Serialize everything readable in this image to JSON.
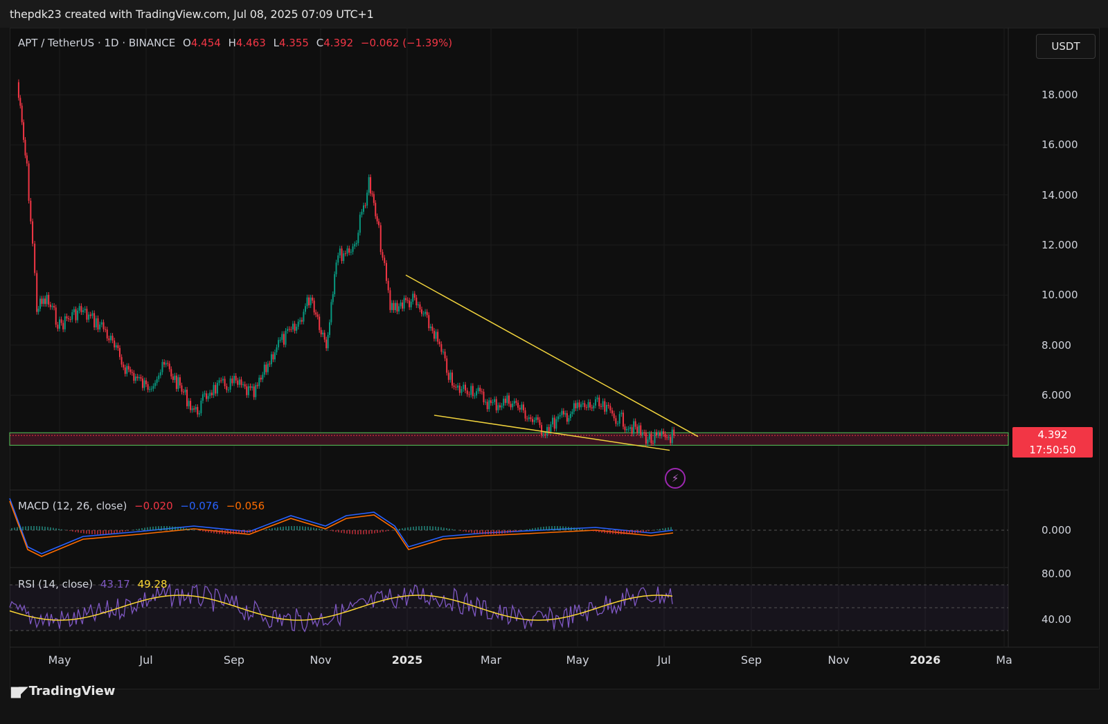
{
  "header": {
    "credit": "thepdk23 created with TradingView.com, Jul 08, 2025 07:09 UTC+1"
  },
  "legend": {
    "symbol": "APT / TetherUS · 1D · BINANCE",
    "o_label": "O",
    "o_value": "4.454",
    "h_label": "H",
    "h_value": "4.463",
    "l_label": "L",
    "l_value": "4.355",
    "c_label": "C",
    "c_value": "4.392",
    "change": "−0.062 (−1.39%)"
  },
  "currency_button": "USDT",
  "price_axis": [
    "18.000",
    "16.000",
    "14.000",
    "12.000",
    "10.000",
    "8.000",
    "6.000"
  ],
  "price_tag": {
    "price": "4.392",
    "countdown": "17:50:50"
  },
  "macd": {
    "label": "MACD (12, 26, close)",
    "v1": "−0.020",
    "v2": "−0.076",
    "v3": "−0.056",
    "axis": "0.000",
    "color_macd": "#2962ff",
    "color_signal": "#ff6d00"
  },
  "rsi": {
    "label": "RSI (14, close)",
    "v1": "43.17",
    "v2": "49.28",
    "axis_top": "80.00",
    "axis_bottom": "40.00",
    "color_rsi": "#7e57c2",
    "color_ma": "#fdd835"
  },
  "time_axis": [
    {
      "label": "May",
      "bold": false
    },
    {
      "label": "Jul",
      "bold": false
    },
    {
      "label": "Sep",
      "bold": false
    },
    {
      "label": "Nov",
      "bold": false
    },
    {
      "label": "2025",
      "bold": true
    },
    {
      "label": "Mar",
      "bold": false
    },
    {
      "label": "May",
      "bold": false
    },
    {
      "label": "Jul",
      "bold": false
    },
    {
      "label": "Sep",
      "bold": false
    },
    {
      "label": "Nov",
      "bold": false
    },
    {
      "label": "2026",
      "bold": true
    },
    {
      "label": "Ma",
      "bold": false
    }
  ],
  "brand": "TradingView",
  "chart_data": {
    "type": "line",
    "instrument": "APT / TetherUS",
    "timeframe": "1D",
    "exchange": "BINANCE",
    "ohlc_last": {
      "open": 4.454,
      "high": 4.463,
      "low": 4.355,
      "close": 4.392,
      "change": -0.062,
      "change_pct": -1.39
    },
    "y_ticks": [
      6,
      8,
      10,
      12,
      14,
      16,
      18
    ],
    "candles_approx_close": [
      {
        "x": "2024-04-01",
        "y": 18.5
      },
      {
        "x": "2024-04-08",
        "y": 15.0
      },
      {
        "x": "2024-04-12",
        "y": 12.0
      },
      {
        "x": "2024-04-15",
        "y": 9.5
      },
      {
        "x": "2024-04-22",
        "y": 9.8
      },
      {
        "x": "2024-05-01",
        "y": 8.8
      },
      {
        "x": "2024-05-15",
        "y": 9.4
      },
      {
        "x": "2024-06-01",
        "y": 8.7
      },
      {
        "x": "2024-06-15",
        "y": 7.2
      },
      {
        "x": "2024-07-01",
        "y": 6.3
      },
      {
        "x": "2024-07-15",
        "y": 7.2
      },
      {
        "x": "2024-08-05",
        "y": 5.3
      },
      {
        "x": "2024-08-15",
        "y": 6.2
      },
      {
        "x": "2024-09-01",
        "y": 6.5
      },
      {
        "x": "2024-09-15",
        "y": 6.0
      },
      {
        "x": "2024-10-01",
        "y": 8.0
      },
      {
        "x": "2024-10-15",
        "y": 8.7
      },
      {
        "x": "2024-10-25",
        "y": 10.0
      },
      {
        "x": "2024-11-05",
        "y": 8.0
      },
      {
        "x": "2024-11-12",
        "y": 11.5
      },
      {
        "x": "2024-11-25",
        "y": 12.0
      },
      {
        "x": "2024-12-05",
        "y": 14.5
      },
      {
        "x": "2024-12-12",
        "y": 12.5
      },
      {
        "x": "2024-12-20",
        "y": 9.5
      },
      {
        "x": "2025-01-05",
        "y": 9.8
      },
      {
        "x": "2025-01-20",
        "y": 8.5
      },
      {
        "x": "2025-02-03",
        "y": 6.2
      },
      {
        "x": "2025-02-15",
        "y": 6.3
      },
      {
        "x": "2025-03-01",
        "y": 5.6
      },
      {
        "x": "2025-03-15",
        "y": 5.8
      },
      {
        "x": "2025-04-07",
        "y": 4.6
      },
      {
        "x": "2025-04-20",
        "y": 5.1
      },
      {
        "x": "2025-05-01",
        "y": 5.5
      },
      {
        "x": "2025-05-15",
        "y": 5.6
      },
      {
        "x": "2025-06-01",
        "y": 5.0
      },
      {
        "x": "2025-06-22",
        "y": 4.2
      },
      {
        "x": "2025-07-08",
        "y": 4.392
      }
    ],
    "support_zone": [
      4.0,
      4.5
    ],
    "trendlines": [
      {
        "name": "upper",
        "from": {
          "x": "2024-12-31",
          "y": 10.8
        },
        "to": {
          "x": "2025-07-25",
          "y": 4.35
        }
      },
      {
        "name": "lower",
        "from": {
          "x": "2025-01-20",
          "y": 5.2
        },
        "to": {
          "x": "2025-07-05",
          "y": 3.8
        }
      }
    ],
    "macd_last": {
      "macd": -0.02,
      "signal": -0.076,
      "hist": -0.056
    },
    "rsi_last": {
      "rsi": 43.17,
      "ma": 49.28
    },
    "rsi_levels": [
      70,
      30
    ]
  }
}
